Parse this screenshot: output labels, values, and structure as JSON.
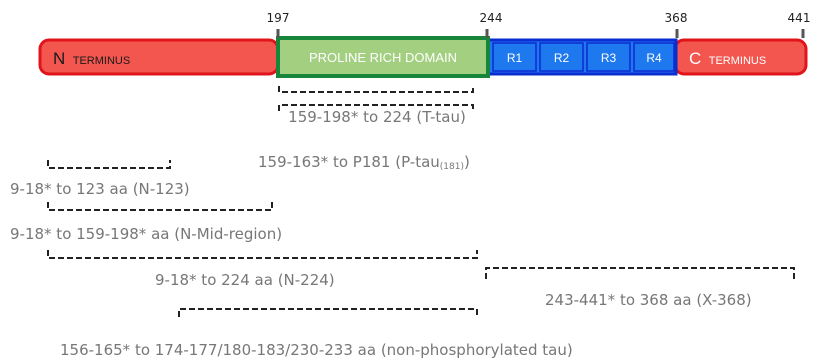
{
  "colors": {
    "terminus_fill": "#f2564f",
    "terminus_stroke": "#e0141a",
    "proline_fill": "#a3cf80",
    "proline_stroke": "#17853a",
    "repeat_fill": "#1e78ee",
    "repeat_stroke": "#0a2cd0",
    "range_text": "#777777"
  },
  "positions": {
    "p197": "197",
    "p244": "244",
    "p368": "368",
    "p441": "441"
  },
  "segments": {
    "n_terminus": {
      "big": "N",
      "small": "TERMINUS"
    },
    "proline": {
      "label": "PROLINE  RICH  DOMAIN"
    },
    "repeats": [
      "R1",
      "R2",
      "R3",
      "R4"
    ],
    "c_terminus": {
      "big": "C",
      "small": "TERMINUS"
    }
  },
  "fragments": {
    "t_tau": "159-198* to 224 (T-tau)",
    "p_tau_main": "159-163* to P181 (P-tau",
    "p_tau_sub": "(181)",
    "p_tau_close": ")",
    "n_123": "9-18* to 123 aa (N-123)",
    "n_mid": "9-18* to 159-198* aa (N-Mid-region)",
    "n_224": "9-18* to 224 aa (N-224)",
    "x_368": "243-441* to 368 aa (X-368)",
    "non_phos": "156-165* to 174-177/180-183/230-233 aa (non-phosphorylated tau)"
  }
}
